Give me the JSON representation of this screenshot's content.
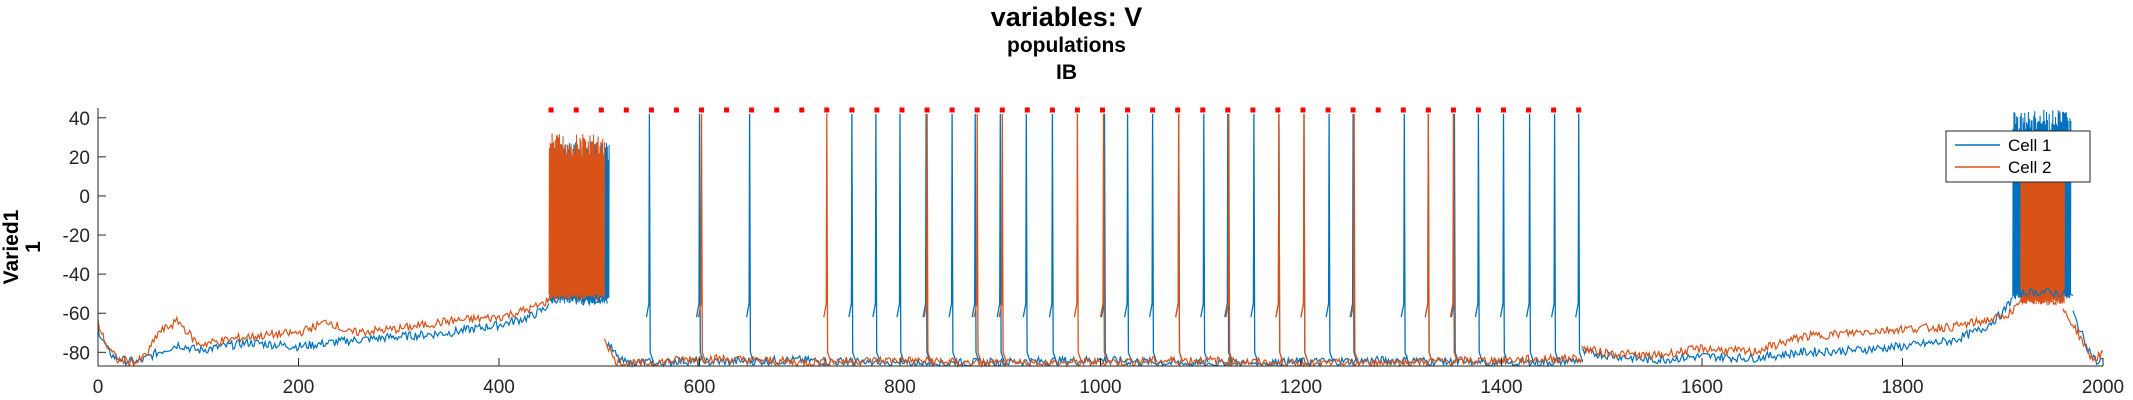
{
  "title": {
    "line1": "variables: V",
    "line2": "populations",
    "line3": "IB"
  },
  "chart_data": {
    "type": "line",
    "ylabel_line1": "Varied1",
    "ylabel_line2": "1",
    "xlim": [
      0,
      2000
    ],
    "ylim": [
      -87,
      45
    ],
    "xticks": [
      0,
      200,
      400,
      600,
      800,
      1000,
      1200,
      1400,
      1600,
      1800,
      2000
    ],
    "yticks": [
      -80,
      -60,
      -40,
      -20,
      0,
      20,
      40
    ],
    "legend_position": "top-right",
    "series": [
      {
        "name": "Cell 1",
        "color": "#0072BD",
        "segments": [
          {
            "x": [
              0,
              5,
              10,
              15,
              25,
              40,
              60,
              80,
              100,
              150,
              200,
              250,
              300,
              350,
              400,
              430,
              445,
              450
            ],
            "y": [
              -68,
              -74,
              -79,
              -82,
              -84,
              -85,
              -80,
              -76,
              -79,
              -75,
              -77,
              -74,
              -72,
              -70,
              -66,
              -62,
              -58,
              -55
            ]
          },
          {
            "x": [
              450,
              470,
              490,
              505,
              508
            ],
            "y": [
              -53,
              -52,
              -54,
              -52,
              -55
            ]
          },
          {
            "x": [
              508,
              520,
              530,
              545,
              560,
              580,
              600,
              700,
              800,
              900,
              1000,
              1100,
              1200,
              1300,
              1400,
              1480
            ],
            "y": [
              -75,
              -84,
              -86,
              -85,
              -86,
              -84,
              -85,
              -84,
              -86,
              -85,
              -84,
              -86,
              -85,
              -84,
              -86,
              -84
            ]
          },
          {
            "x": [
              1480,
              1500,
              1550,
              1600,
              1650,
              1700,
              1750,
              1800,
              1850,
              1880,
              1900,
              1910
            ],
            "y": [
              -80,
              -81,
              -84,
              -82,
              -83,
              -80,
              -79,
              -77,
              -74,
              -68,
              -60,
              -52
            ]
          },
          {
            "x": [
              1910,
              1940,
              1970
            ],
            "y": [
              -50,
              -49,
              -51
            ]
          },
          {
            "x": [
              1970,
              1985,
              1995,
              2000
            ],
            "y": [
              -60,
              -78,
              -86,
              -83
            ]
          }
        ],
        "isolated_spikes": [
          550,
          600,
          650,
          752,
          776,
          800,
          826,
          852,
          875,
          900,
          926,
          952,
          1004,
          1027,
          1052,
          1078,
          1103,
          1127,
          1153,
          1178,
          1203,
          1228,
          1252,
          1303,
          1327,
          1353,
          1377,
          1402,
          1428,
          1453,
          1477
        ]
      },
      {
        "name": "Cell 2",
        "color": "#D95319",
        "segments": [
          {
            "x": [
              0,
              5,
              10,
              20,
              40,
              50,
              60,
              80,
              100,
              150,
              200,
              230,
              250,
              300,
              350,
              400,
              430,
              445,
              450
            ],
            "y": [
              -65,
              -72,
              -78,
              -84,
              -85,
              -80,
              -70,
              -64,
              -76,
              -72,
              -70,
              -64,
              -70,
              -68,
              -64,
              -62,
              -58,
              -55,
              -52
            ]
          },
          {
            "x": [
              450,
              470,
              490,
              505
            ],
            "y": [
              -51,
              -50,
              -52,
              -50
            ]
          },
          {
            "x": [
              505,
              515,
              530,
              560,
              600,
              700,
              800,
              900,
              1000,
              1100,
              1200,
              1300,
              1400,
              1480
            ],
            "y": [
              -72,
              -84,
              -86,
              -85,
              -83,
              -85,
              -84,
              -86,
              -85,
              -84,
              -86,
              -85,
              -84,
              -83
            ]
          },
          {
            "x": [
              1480,
              1500,
              1550,
              1600,
              1650,
              1700,
              1750,
              1800,
              1850,
              1900,
              1920
            ],
            "y": [
              -78,
              -80,
              -82,
              -78,
              -80,
              -72,
              -70,
              -68,
              -67,
              -62,
              -55
            ]
          },
          {
            "x": [
              1920,
              1940,
              1960
            ],
            "y": [
              -53,
              -52,
              -54
            ]
          },
          {
            "x": [
              1960,
              1975,
              1990,
              2000
            ],
            "y": [
              -58,
              -70,
              -84,
              -80
            ]
          }
        ],
        "isolated_spikes": [
          602,
          727,
          827,
          877,
          902,
          977,
          1003,
          1078,
          1128,
          1178,
          1203,
          1253,
          1327,
          1352
        ]
      }
    ],
    "burst_regions": [
      {
        "series": "Cell 1",
        "x_start": 451,
        "x_end": 510,
        "y_low": -52,
        "y_high": 28
      },
      {
        "series": "Cell 2",
        "x_start": 450,
        "x_end": 505,
        "y_low": -50,
        "y_high": 32
      },
      {
        "series": "Cell 1",
        "x_start": 1910,
        "x_end": 1968,
        "y_low": -50,
        "y_high": 44
      },
      {
        "series": "Cell 2",
        "x_start": 1918,
        "x_end": 1962,
        "y_low": -53,
        "y_high": 26
      }
    ],
    "event_markers": {
      "y": 44,
      "color": "#FF0000",
      "x": [
        452,
        477,
        502,
        527,
        552,
        577,
        602,
        627,
        652,
        677,
        702,
        727,
        752,
        777,
        802,
        827,
        852,
        877,
        902,
        927,
        952,
        977,
        1002,
        1027,
        1052,
        1077,
        1102,
        1127,
        1152,
        1177,
        1202,
        1227,
        1252,
        1277,
        1302,
        1327,
        1352,
        1377,
        1402,
        1427,
        1452,
        1477
      ]
    }
  }
}
